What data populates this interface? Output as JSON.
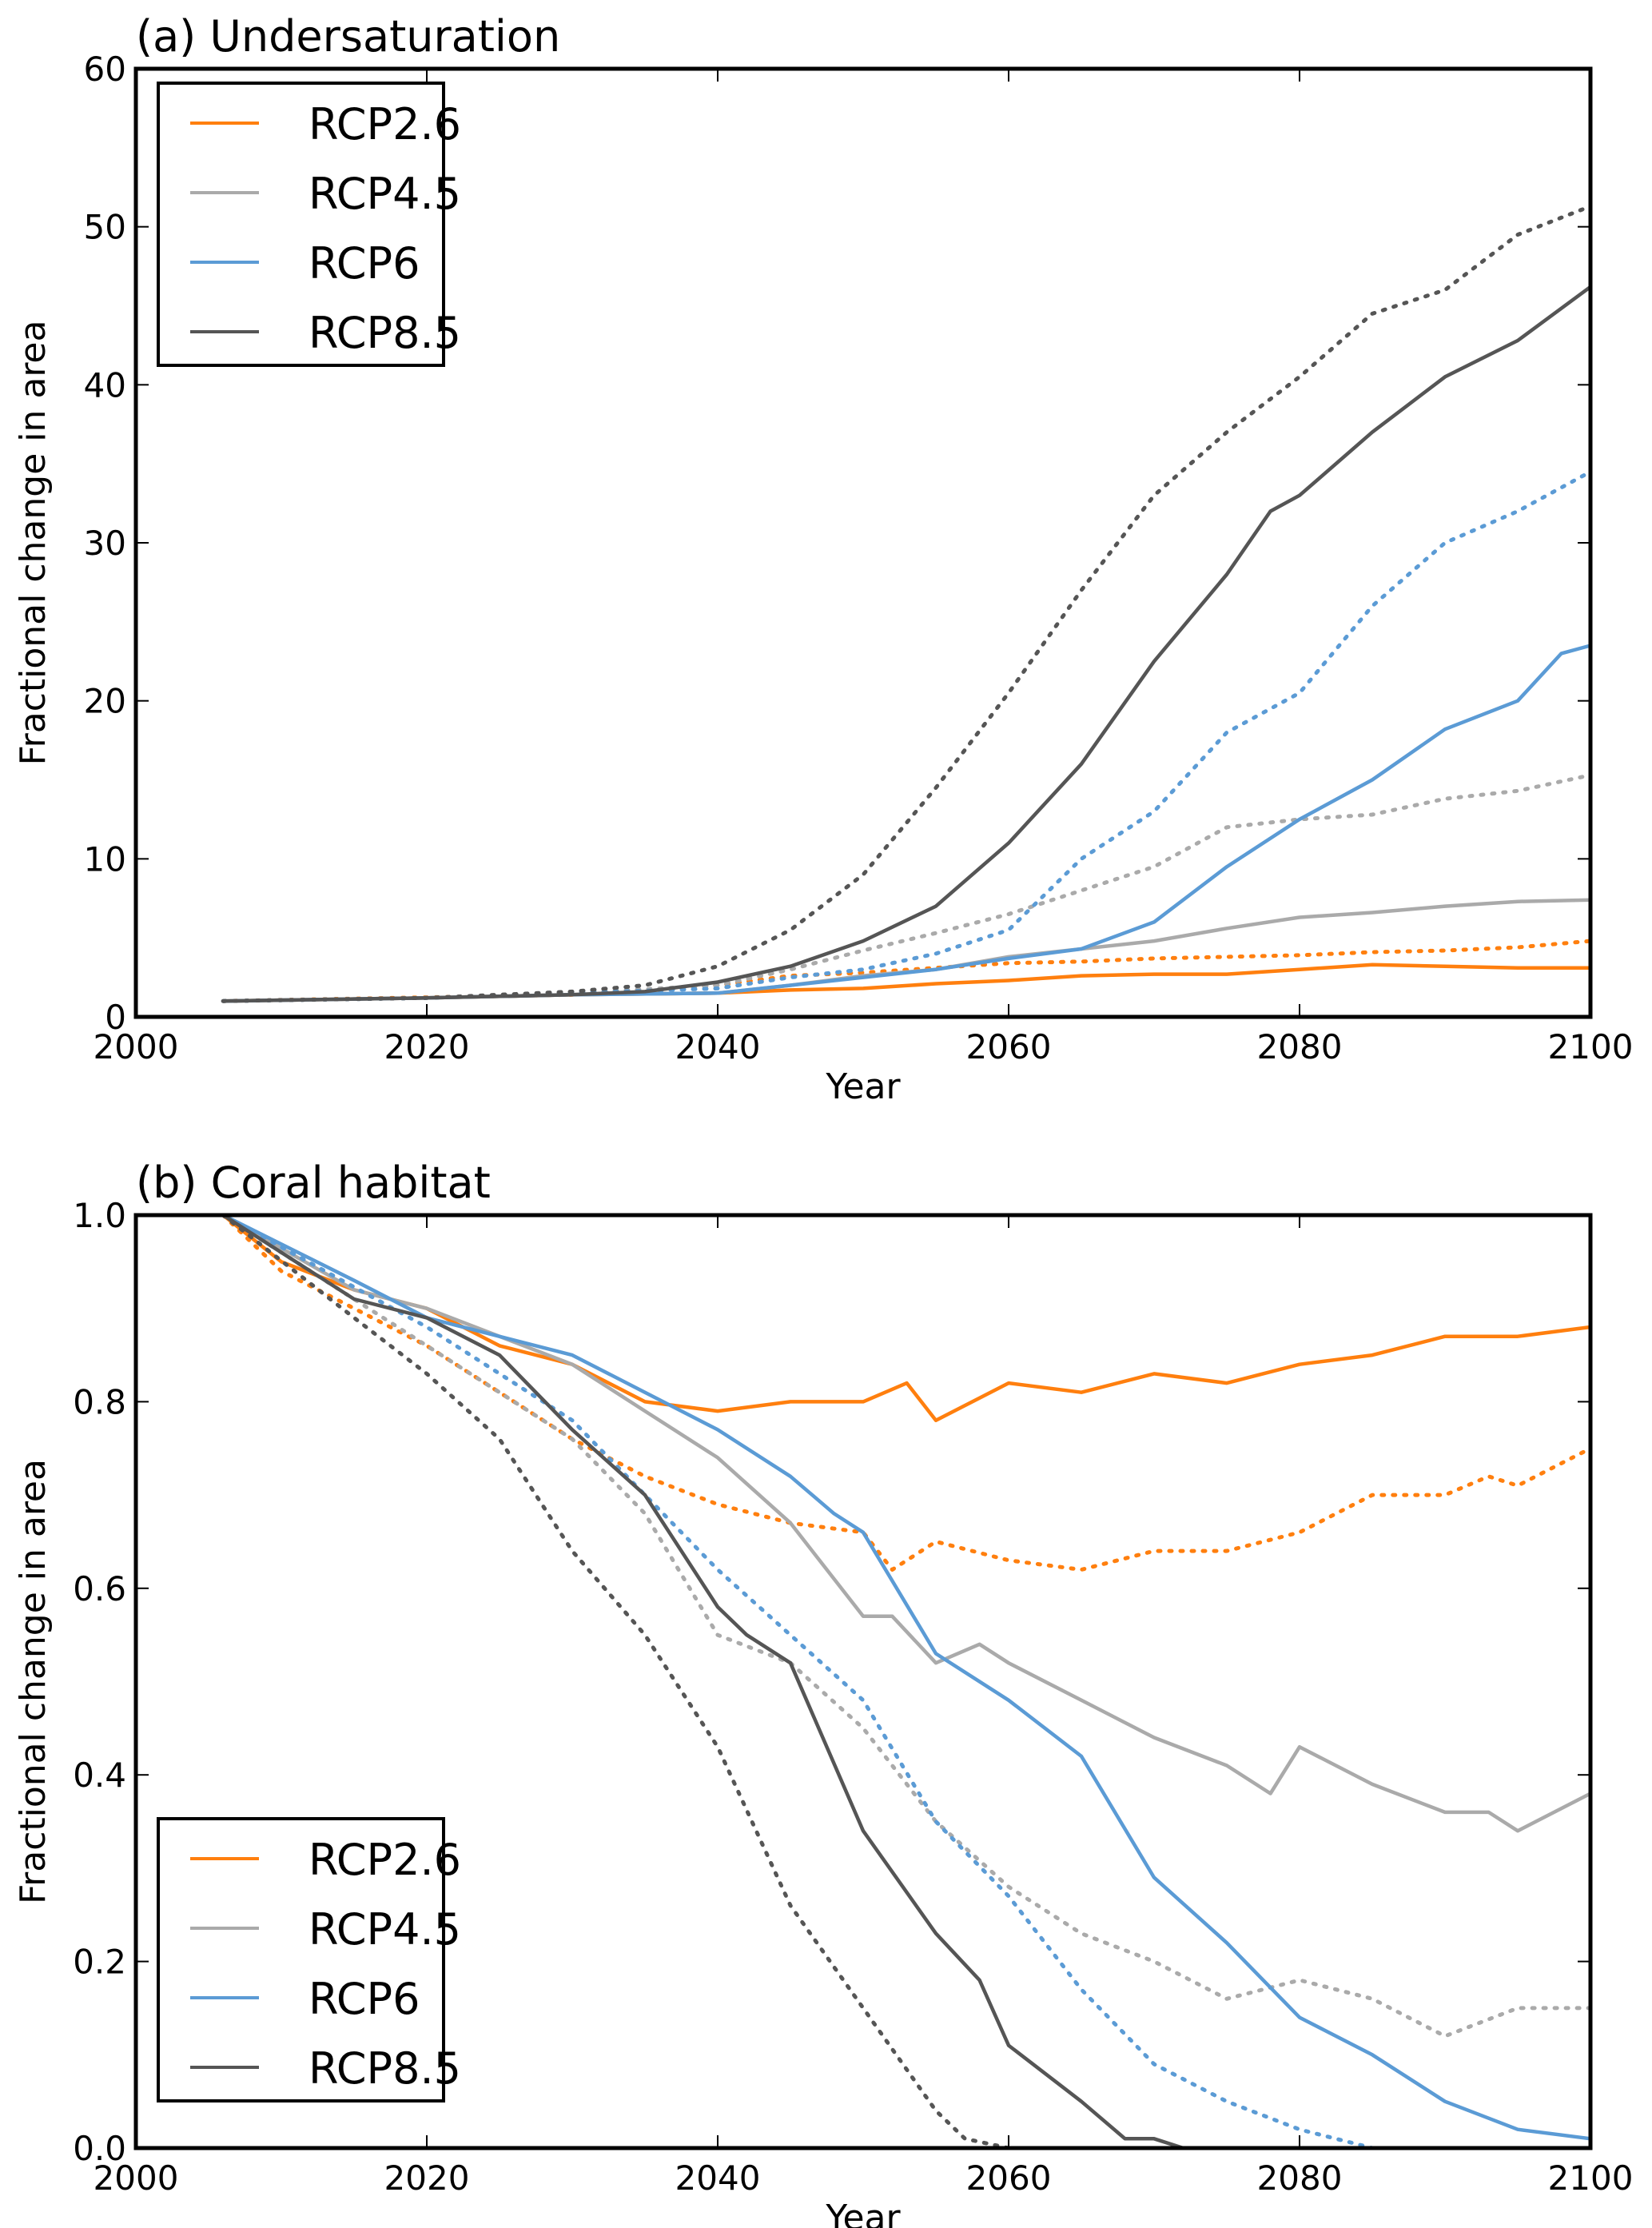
{
  "chart_data": [
    {
      "type": "line",
      "title": "(a) Undersaturation",
      "xlabel": "Year",
      "ylabel": "Fractional change in area",
      "xlim": [
        2000,
        2100
      ],
      "ylim": [
        0,
        60
      ],
      "xticks": [
        2000,
        2020,
        2040,
        2060,
        2080,
        2100
      ],
      "yticks": [
        0,
        10,
        20,
        30,
        40,
        50,
        60
      ],
      "grid": false,
      "legend_placement": "top-left",
      "legend": [
        "RCP2.6",
        "RCP4.5",
        "RCP6",
        "RCP8.5"
      ],
      "line_styles": {
        "solid": "solid",
        "dotted": "dotted"
      },
      "series": [
        {
          "name": "RCP2.6",
          "color": "#ff7f0e",
          "style": "solid",
          "x": [
            2006,
            2020,
            2030,
            2040,
            2045,
            2050,
            2055,
            2060,
            2065,
            2070,
            2075,
            2080,
            2085,
            2090,
            2095,
            2100
          ],
          "y": [
            1,
            1.2,
            1.4,
            1.5,
            1.7,
            1.8,
            2.1,
            2.3,
            2.6,
            2.7,
            2.7,
            3.0,
            3.3,
            3.2,
            3.1,
            3.1
          ]
        },
        {
          "color": "#ff7f0e",
          "style": "dotted",
          "x": [
            2006,
            2030,
            2040,
            2045,
            2050,
            2055,
            2060,
            2065,
            2070,
            2075,
            2080,
            2085,
            2090,
            2095,
            2100
          ],
          "y": [
            1,
            1.4,
            2.0,
            2.6,
            2.8,
            3.1,
            3.4,
            3.5,
            3.7,
            3.8,
            3.9,
            4.1,
            4.2,
            4.4,
            4.8
          ]
        },
        {
          "name": "RCP4.5",
          "color": "#aaaaaa",
          "style": "solid",
          "x": [
            2006,
            2020,
            2030,
            2040,
            2045,
            2050,
            2055,
            2060,
            2065,
            2070,
            2075,
            2080,
            2085,
            2090,
            2095,
            2100
          ],
          "y": [
            1,
            1.2,
            1.4,
            1.5,
            2.0,
            2.6,
            3.0,
            3.8,
            4.3,
            4.8,
            5.6,
            6.3,
            6.6,
            7.0,
            7.3,
            7.4
          ]
        },
        {
          "color": "#aaaaaa",
          "style": "dotted",
          "x": [
            2006,
            2020,
            2030,
            2040,
            2045,
            2050,
            2055,
            2060,
            2065,
            2070,
            2075,
            2080,
            2085,
            2090,
            2095,
            2100
          ],
          "y": [
            1,
            1.2,
            1.5,
            2.0,
            3.0,
            4.2,
            5.3,
            6.5,
            8.0,
            9.5,
            12.0,
            12.5,
            12.8,
            13.8,
            14.3,
            15.3
          ]
        },
        {
          "name": "RCP6",
          "color": "#5b9bd5",
          "style": "solid",
          "x": [
            2006,
            2020,
            2030,
            2040,
            2045,
            2050,
            2055,
            2060,
            2065,
            2070,
            2075,
            2080,
            2085,
            2090,
            2095,
            2098,
            2100
          ],
          "y": [
            1,
            1.2,
            1.4,
            1.5,
            2.0,
            2.5,
            3.0,
            3.7,
            4.3,
            6.0,
            9.5,
            12.5,
            15.0,
            18.2,
            20.0,
            23.0,
            23.5
          ]
        },
        {
          "color": "#5b9bd5",
          "style": "dotted",
          "x": [
            2006,
            2020,
            2030,
            2040,
            2045,
            2050,
            2055,
            2060,
            2065,
            2070,
            2075,
            2080,
            2085,
            2090,
            2095,
            2100
          ],
          "y": [
            1,
            1.2,
            1.5,
            1.8,
            2.5,
            3.0,
            4.0,
            5.5,
            10.0,
            13.0,
            18.0,
            20.5,
            26.0,
            30.0,
            32.0,
            34.5
          ]
        },
        {
          "name": "RCP8.5",
          "color": "#555555",
          "style": "solid",
          "x": [
            2006,
            2020,
            2030,
            2035,
            2040,
            2045,
            2050,
            2055,
            2060,
            2065,
            2070,
            2075,
            2078,
            2080,
            2085,
            2090,
            2095,
            2100
          ],
          "y": [
            1,
            1.2,
            1.4,
            1.6,
            2.2,
            3.2,
            4.8,
            7.0,
            11.0,
            16.0,
            22.5,
            28.0,
            32.0,
            33.0,
            37.0,
            40.5,
            42.8,
            46.2
          ]
        },
        {
          "color": "#555555",
          "style": "dotted",
          "x": [
            2006,
            2020,
            2030,
            2035,
            2040,
            2045,
            2050,
            2055,
            2060,
            2065,
            2070,
            2075,
            2080,
            2085,
            2090,
            2095,
            2100
          ],
          "y": [
            1,
            1.2,
            1.6,
            2.0,
            3.2,
            5.5,
            9.0,
            14.5,
            20.5,
            27.0,
            33.0,
            37.0,
            40.5,
            44.5,
            46.0,
            49.5,
            51.3
          ]
        }
      ]
    },
    {
      "type": "line",
      "title": "(b) Coral habitat",
      "xlabel": "Year",
      "ylabel": "Fractional change in area",
      "xlim": [
        2000,
        2100
      ],
      "ylim": [
        0,
        1.0
      ],
      "xticks": [
        2000,
        2020,
        2040,
        2060,
        2080,
        2100
      ],
      "yticks": [
        "0.0",
        "0.2",
        "0.4",
        "0.6",
        "0.8",
        "1.0"
      ],
      "grid": false,
      "legend_placement": "bottom-left",
      "legend": [
        "RCP2.6",
        "RCP4.5",
        "RCP6",
        "RCP8.5"
      ],
      "series": [
        {
          "name": "RCP2.6",
          "color": "#ff7f0e",
          "style": "solid",
          "x": [
            2006,
            2010,
            2015,
            2020,
            2025,
            2030,
            2035,
            2040,
            2045,
            2050,
            2053,
            2055,
            2060,
            2065,
            2070,
            2075,
            2080,
            2085,
            2090,
            2095,
            2100
          ],
          "y": [
            1.0,
            0.95,
            0.92,
            0.9,
            0.86,
            0.84,
            0.8,
            0.79,
            0.8,
            0.8,
            0.82,
            0.78,
            0.82,
            0.81,
            0.83,
            0.82,
            0.84,
            0.85,
            0.87,
            0.87,
            0.88
          ]
        },
        {
          "color": "#ff7f0e",
          "style": "dotted",
          "x": [
            2006,
            2010,
            2020,
            2030,
            2035,
            2040,
            2045,
            2050,
            2052,
            2055,
            2060,
            2065,
            2070,
            2075,
            2080,
            2085,
            2090,
            2093,
            2095,
            2100
          ],
          "y": [
            1,
            0.94,
            0.86,
            0.76,
            0.72,
            0.69,
            0.67,
            0.66,
            0.62,
            0.65,
            0.63,
            0.62,
            0.64,
            0.64,
            0.66,
            0.7,
            0.7,
            0.72,
            0.71,
            0.75
          ]
        },
        {
          "name": "RCP4.5",
          "color": "#aaaaaa",
          "style": "solid",
          "x": [
            2006,
            2015,
            2020,
            2030,
            2035,
            2040,
            2045,
            2050,
            2052,
            2055,
            2058,
            2060,
            2065,
            2070,
            2075,
            2078,
            2080,
            2085,
            2090,
            2093,
            2095,
            2100
          ],
          "y": [
            1,
            0.92,
            0.9,
            0.84,
            0.79,
            0.74,
            0.67,
            0.57,
            0.57,
            0.52,
            0.54,
            0.52,
            0.48,
            0.44,
            0.41,
            0.38,
            0.43,
            0.39,
            0.36,
            0.36,
            0.34,
            0.38
          ]
        },
        {
          "color": "#aaaaaa",
          "style": "dotted",
          "x": [
            2006,
            2020,
            2030,
            2035,
            2040,
            2045,
            2050,
            2055,
            2060,
            2065,
            2070,
            2075,
            2080,
            2085,
            2090,
            2095,
            2100
          ],
          "y": [
            1,
            0.86,
            0.76,
            0.68,
            0.55,
            0.52,
            0.45,
            0.35,
            0.28,
            0.23,
            0.2,
            0.16,
            0.18,
            0.16,
            0.12,
            0.15,
            0.15
          ]
        },
        {
          "name": "RCP6",
          "color": "#5b9bd5",
          "style": "solid",
          "x": [
            2006,
            2015,
            2020,
            2030,
            2035,
            2040,
            2045,
            2048,
            2050,
            2055,
            2060,
            2065,
            2070,
            2075,
            2080,
            2085,
            2090,
            2095,
            2100
          ],
          "y": [
            1,
            0.93,
            0.89,
            0.85,
            0.81,
            0.77,
            0.72,
            0.68,
            0.66,
            0.53,
            0.48,
            0.42,
            0.29,
            0.22,
            0.14,
            0.1,
            0.05,
            0.02,
            0.01
          ]
        },
        {
          "color": "#5b9bd5",
          "style": "dotted",
          "x": [
            2006,
            2020,
            2030,
            2035,
            2040,
            2045,
            2050,
            2055,
            2060,
            2065,
            2070,
            2075,
            2080,
            2085,
            2100
          ],
          "y": [
            1,
            0.88,
            0.78,
            0.7,
            0.62,
            0.55,
            0.48,
            0.35,
            0.27,
            0.17,
            0.09,
            0.05,
            0.02,
            0.0,
            0.0
          ]
        },
        {
          "name": "RCP8.5",
          "color": "#555555",
          "style": "solid",
          "x": [
            2006,
            2015,
            2020,
            2025,
            2030,
            2035,
            2040,
            2042,
            2045,
            2050,
            2055,
            2058,
            2060,
            2065,
            2068,
            2070,
            2072,
            2100
          ],
          "y": [
            1,
            0.91,
            0.89,
            0.85,
            0.77,
            0.7,
            0.58,
            0.55,
            0.52,
            0.34,
            0.23,
            0.18,
            0.11,
            0.05,
            0.01,
            0.01,
            0.0,
            0.0
          ]
        },
        {
          "color": "#555555",
          "style": "dotted",
          "x": [
            2006,
            2015,
            2020,
            2025,
            2030,
            2035,
            2040,
            2045,
            2050,
            2055,
            2057,
            2060,
            2100
          ],
          "y": [
            1,
            0.89,
            0.83,
            0.76,
            0.64,
            0.55,
            0.43,
            0.26,
            0.15,
            0.04,
            0.01,
            0.0,
            0.0
          ]
        }
      ]
    }
  ]
}
